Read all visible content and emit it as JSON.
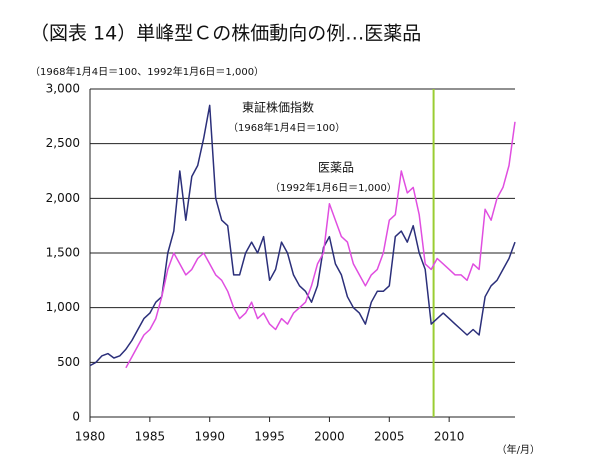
{
  "chart_data": {
    "type": "line",
    "title": "（図表 14）単峰型Ｃの株価動向の例…医薬品",
    "subtitle": "（1968年1月4日＝100、1992年1月6日＝1,000）",
    "x_label": "（年/月）",
    "annotations": [
      "東証株価指数",
      "（1968年1月4日＝100）",
      "医薬品",
      "（1992年1月6日＝1,000）"
    ],
    "x": [
      1980,
      1980.5,
      1981,
      1981.5,
      1982,
      1982.5,
      1983,
      1983.5,
      1984,
      1984.5,
      1985,
      1985.5,
      1986,
      1986.5,
      1987,
      1987.5,
      1988,
      1988.5,
      1989,
      1989.5,
      1990,
      1990.5,
      1991,
      1991.5,
      1992,
      1992.5,
      1993,
      1993.5,
      1994,
      1994.5,
      1995,
      1995.5,
      1996,
      1996.5,
      1997,
      1997.5,
      1998,
      1998.5,
      1999,
      1999.5,
      2000,
      2000.5,
      2001,
      2001.5,
      2002,
      2002.5,
      2003,
      2003.5,
      2004,
      2004.5,
      2005,
      2005.5,
      2006,
      2006.5,
      2007,
      2007.5,
      2008,
      2008.5,
      2009,
      2009.5,
      2010,
      2010.5,
      2011,
      2011.5,
      2012,
      2012.5,
      2013,
      2013.5,
      2014,
      2014.5,
      2015,
      2015.5
    ],
    "series": [
      {
        "name": "東証株価指数",
        "color": "#2b2f7a",
        "values": [
          470,
          500,
          560,
          580,
          540,
          560,
          620,
          700,
          800,
          900,
          950,
          1050,
          1100,
          1500,
          1700,
          2250,
          1800,
          2200,
          2300,
          2550,
          2850,
          2000,
          1800,
          1750,
          1300,
          1300,
          1500,
          1600,
          1500,
          1650,
          1250,
          1350,
          1600,
          1500,
          1300,
          1200,
          1150,
          1050,
          1200,
          1550,
          1650,
          1400,
          1300,
          1100,
          1000,
          950,
          850,
          1050,
          1150,
          1150,
          1200,
          1650,
          1700,
          1600,
          1750,
          1500,
          1350,
          850,
          900,
          950,
          900,
          850,
          800,
          750,
          800,
          750,
          1100,
          1200,
          1250,
          1350,
          1450,
          1600
        ]
      },
      {
        "name": "医薬品",
        "color": "#e04ee0",
        "values": [
          null,
          null,
          null,
          null,
          null,
          null,
          450,
          550,
          650,
          750,
          800,
          900,
          1100,
          1350,
          1500,
          1400,
          1300,
          1350,
          1450,
          1500,
          1400,
          1300,
          1250,
          1150,
          1000,
          900,
          950,
          1050,
          900,
          950,
          850,
          800,
          900,
          850,
          950,
          1000,
          1050,
          1200,
          1400,
          1500,
          1950,
          1800,
          1650,
          1600,
          1400,
          1300,
          1200,
          1300,
          1350,
          1500,
          1800,
          1850,
          2250,
          2050,
          2100,
          1850,
          1400,
          1350,
          1450,
          1400,
          1350,
          1300,
          1300,
          1250,
          1400,
          1350,
          1900,
          1800,
          2000,
          2100,
          2300,
          2700
        ]
      }
    ],
    "vlines": [
      {
        "x": 2008.7,
        "color": "#9acd32"
      }
    ],
    "xlim": [
      1980,
      2015.5
    ],
    "xticks": [
      1980,
      1985,
      1990,
      1995,
      2000,
      2005,
      2010
    ],
    "ylim": [
      0,
      3000
    ],
    "yticks": [
      0,
      500,
      {
        "value": 1000,
        "label": "1,000"
      },
      {
        "value": 1500,
        "label": "1,500"
      },
      {
        "value": 2000,
        "label": "2,000"
      },
      {
        "value": 2500,
        "label": "2,500"
      },
      {
        "value": 3000,
        "label": "3,000"
      }
    ],
    "grid": true
  }
}
